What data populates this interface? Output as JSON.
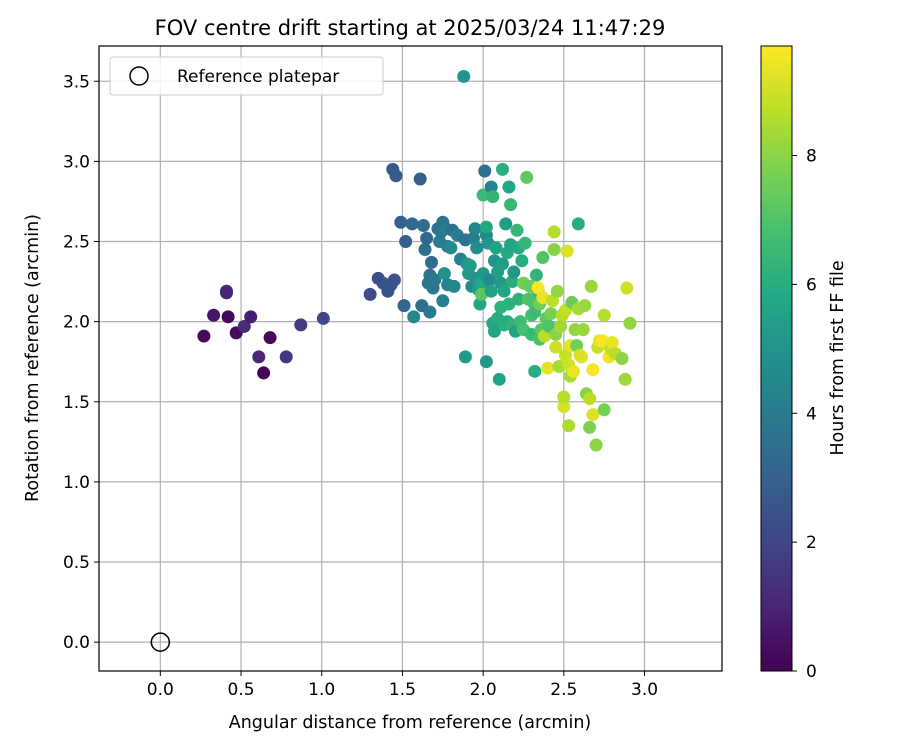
{
  "chart_data": {
    "type": "scatter",
    "title": "FOV centre drift starting at 2025/03/24 11:47:29",
    "xlabel": "Angular distance from reference (arcmin)",
    "ylabel": "Rotation from reference (arcmin)",
    "xlim": [
      -0.38,
      3.48
    ],
    "ylim": [
      -0.18,
      3.72
    ],
    "xticks": [
      0.0,
      0.5,
      1.0,
      1.5,
      2.0,
      2.5,
      3.0
    ],
    "xtick_labels": [
      "0.0",
      "0.5",
      "1.0",
      "1.5",
      "2.0",
      "2.5",
      "3.0"
    ],
    "yticks": [
      0.0,
      0.5,
      1.0,
      1.5,
      2.0,
      2.5,
      3.0,
      3.5
    ],
    "ytick_labels": [
      "0.0",
      "0.5",
      "1.0",
      "1.5",
      "2.0",
      "2.5",
      "3.0",
      "3.5"
    ],
    "grid": true,
    "legend": {
      "position": "top-left",
      "entries": [
        "Reference platepar"
      ]
    },
    "reference_point": {
      "name": "Reference platepar",
      "x": 0.0,
      "y": 0.0,
      "marker": "hollow-circle"
    },
    "colorbar": {
      "label": "Hours from first FF file",
      "min": 0,
      "max": 9.7,
      "ticks": [
        0,
        2,
        4,
        6,
        8
      ],
      "tick_labels": [
        "0",
        "2",
        "4",
        "6",
        "8"
      ],
      "colormap": "viridis"
    },
    "points": [
      [
        0.27,
        1.91,
        0.3
      ],
      [
        0.33,
        2.04,
        0.6
      ],
      [
        0.41,
        2.18,
        0.9
      ],
      [
        0.41,
        2.19,
        1.0
      ],
      [
        0.42,
        2.03,
        0.2
      ],
      [
        0.47,
        1.93,
        0.3
      ],
      [
        0.52,
        1.97,
        1.2
      ],
      [
        0.56,
        2.03,
        0.8
      ],
      [
        0.61,
        1.78,
        1.1
      ],
      [
        0.64,
        1.68,
        0.1
      ],
      [
        0.68,
        1.9,
        0.2
      ],
      [
        0.78,
        1.78,
        1.5
      ],
      [
        0.87,
        1.98,
        1.7
      ],
      [
        1.01,
        2.02,
        2.0
      ],
      [
        1.3,
        2.17,
        2.2
      ],
      [
        1.35,
        2.27,
        2.3
      ],
      [
        1.38,
        2.24,
        2.4
      ],
      [
        1.41,
        2.19,
        2.5
      ],
      [
        1.43,
        2.23,
        2.6
      ],
      [
        1.45,
        2.26,
        2.4
      ],
      [
        1.44,
        2.95,
        2.7
      ],
      [
        1.46,
        2.91,
        2.8
      ],
      [
        1.49,
        2.62,
        3.0
      ],
      [
        1.51,
        2.1,
        3.2
      ],
      [
        1.52,
        2.5,
        3.0
      ],
      [
        1.56,
        2.61,
        3.3
      ],
      [
        1.57,
        2.03,
        4.5
      ],
      [
        1.61,
        2.89,
        2.9
      ],
      [
        1.62,
        2.1,
        3.6
      ],
      [
        1.63,
        2.6,
        3.4
      ],
      [
        1.64,
        2.45,
        3.5
      ],
      [
        1.65,
        2.52,
        3.3
      ],
      [
        1.66,
        2.24,
        3.8
      ],
      [
        1.67,
        2.06,
        3.9
      ],
      [
        1.67,
        2.29,
        3.6
      ],
      [
        1.68,
        2.37,
        3.4
      ],
      [
        1.69,
        2.21,
        3.8
      ],
      [
        1.7,
        2.26,
        3.9
      ],
      [
        1.72,
        2.58,
        3.5
      ],
      [
        1.73,
        2.5,
        4.0
      ],
      [
        1.74,
        2.56,
        3.8
      ],
      [
        1.75,
        2.13,
        4.2
      ],
      [
        1.75,
        2.62,
        3.7
      ],
      [
        1.76,
        2.3,
        4.8
      ],
      [
        1.77,
        2.58,
        4.0
      ],
      [
        1.78,
        2.47,
        4.1
      ],
      [
        1.78,
        2.23,
        4.3
      ],
      [
        1.8,
        2.46,
        4.6
      ],
      [
        1.81,
        2.57,
        3.6
      ],
      [
        1.82,
        2.22,
        4.4
      ],
      [
        1.84,
        2.54,
        4.0
      ],
      [
        1.86,
        2.39,
        4.2
      ],
      [
        1.88,
        3.53,
        5.0
      ],
      [
        1.89,
        1.78,
        5.2
      ],
      [
        1.89,
        2.51,
        3.8
      ],
      [
        1.9,
        2.36,
        5.0
      ],
      [
        1.91,
        2.3,
        5.1
      ],
      [
        1.92,
        2.35,
        5.3
      ],
      [
        1.93,
        2.22,
        4.6
      ],
      [
        1.94,
        2.52,
        4.2
      ],
      [
        1.95,
        2.58,
        4.4
      ],
      [
        1.96,
        2.46,
        4.7
      ],
      [
        1.96,
        2.27,
        4.9
      ],
      [
        1.97,
        2.2,
        5.4
      ],
      [
        1.98,
        2.11,
        5.6
      ],
      [
        1.99,
        2.24,
        5.8
      ],
      [
        1.99,
        2.17,
        7.2
      ],
      [
        2.0,
        2.3,
        5.2
      ],
      [
        2.0,
        2.79,
        6.6
      ],
      [
        2.01,
        2.94,
        3.6
      ],
      [
        2.02,
        1.75,
        5.2
      ],
      [
        2.02,
        2.54,
        4.5
      ],
      [
        2.02,
        2.59,
        5.8
      ],
      [
        2.03,
        2.49,
        5.0
      ],
      [
        2.04,
        2.26,
        4.6
      ],
      [
        2.05,
        2.84,
        4.4
      ],
      [
        2.05,
        2.19,
        5.5
      ],
      [
        2.06,
        1.99,
        5.8
      ],
      [
        2.06,
        2.78,
        6.3
      ],
      [
        2.07,
        1.94,
        5.7
      ],
      [
        2.07,
        2.38,
        5.0
      ],
      [
        2.08,
        2.46,
        5.6
      ],
      [
        2.09,
        2.02,
        6.0
      ],
      [
        2.09,
        2.31,
        5.4
      ],
      [
        2.1,
        1.64,
        5.6
      ],
      [
        2.11,
        2.09,
        6.2
      ],
      [
        2.11,
        2.24,
        5.2
      ],
      [
        2.12,
        2.95,
        6.1
      ],
      [
        2.12,
        2.36,
        5.3
      ],
      [
        2.13,
        1.98,
        6.1
      ],
      [
        2.13,
        2.19,
        5.7
      ],
      [
        2.14,
        2.61,
        5.4
      ],
      [
        2.15,
        2.0,
        6.0
      ],
      [
        2.15,
        2.43,
        5.9
      ],
      [
        2.16,
        2.84,
        5.8
      ],
      [
        2.16,
        2.11,
        6.2
      ],
      [
        2.17,
        2.73,
        6.5
      ],
      [
        2.17,
        2.48,
        5.6
      ],
      [
        2.18,
        2.25,
        6.0
      ],
      [
        2.18,
        1.98,
        6.3
      ],
      [
        2.19,
        2.31,
        5.1
      ],
      [
        2.2,
        1.94,
        5.7
      ],
      [
        2.21,
        2.57,
        6.4
      ],
      [
        2.22,
        2.46,
        5.9
      ],
      [
        2.22,
        2.14,
        6.2
      ],
      [
        2.23,
        2.0,
        6.6
      ],
      [
        2.24,
        2.38,
        6.0
      ],
      [
        2.25,
        1.95,
        6.8
      ],
      [
        2.25,
        2.24,
        7.6
      ],
      [
        2.26,
        2.49,
        6.4
      ],
      [
        2.27,
        2.9,
        7.3
      ],
      [
        2.28,
        2.14,
        7.0
      ],
      [
        2.29,
        2.22,
        7.4
      ],
      [
        2.3,
        1.92,
        6.5
      ],
      [
        2.3,
        2.04,
        6.8
      ],
      [
        2.31,
        2.12,
        6.9
      ],
      [
        2.32,
        1.69,
        6.0
      ],
      [
        2.32,
        2.06,
        6.6
      ],
      [
        2.33,
        2.29,
        6.3
      ],
      [
        2.34,
        2.19,
        6.4
      ],
      [
        2.34,
        2.21,
        9.6
      ],
      [
        2.35,
        1.89,
        6.9
      ],
      [
        2.35,
        2.11,
        7.6
      ],
      [
        2.36,
        1.95,
        7.2
      ],
      [
        2.37,
        2.4,
        7.0
      ],
      [
        2.37,
        2.15,
        9.4
      ],
      [
        2.38,
        1.91,
        8.7
      ],
      [
        2.39,
        2.02,
        7.3
      ],
      [
        2.4,
        1.71,
        9.3
      ],
      [
        2.41,
        1.97,
        7.0
      ],
      [
        2.42,
        2.05,
        7.7
      ],
      [
        2.43,
        2.13,
        8.7
      ],
      [
        2.44,
        2.56,
        8.6
      ],
      [
        2.44,
        2.45,
        7.9
      ],
      [
        2.45,
        1.92,
        8.0
      ],
      [
        2.45,
        1.84,
        9.0
      ],
      [
        2.46,
        2.19,
        8.1
      ],
      [
        2.47,
        1.72,
        8.4
      ],
      [
        2.48,
        1.97,
        8.3
      ],
      [
        2.49,
        2.04,
        8.6
      ],
      [
        2.5,
        1.47,
        9.1
      ],
      [
        2.5,
        1.53,
        8.6
      ],
      [
        2.51,
        1.79,
        8.9
      ],
      [
        2.51,
        2.07,
        8.8
      ],
      [
        2.52,
        2.44,
        9.2
      ],
      [
        2.53,
        1.35,
        8.5
      ],
      [
        2.53,
        1.73,
        9.0
      ],
      [
        2.54,
        1.85,
        9.3
      ],
      [
        2.54,
        1.66,
        8.4
      ],
      [
        2.55,
        2.12,
        7.5
      ],
      [
        2.56,
        1.69,
        9.4
      ],
      [
        2.57,
        1.95,
        8.1
      ],
      [
        2.58,
        1.85,
        7.6
      ],
      [
        2.59,
        2.08,
        8.4
      ],
      [
        2.59,
        2.61,
        6.0
      ],
      [
        2.6,
        1.79,
        9.0
      ],
      [
        2.61,
        1.78,
        9.2
      ],
      [
        2.62,
        1.95,
        8.2
      ],
      [
        2.63,
        2.1,
        8.2
      ],
      [
        2.64,
        1.55,
        7.9
      ],
      [
        2.66,
        1.52,
        8.7
      ],
      [
        2.66,
        1.34,
        7.8
      ],
      [
        2.67,
        2.22,
        8.2
      ],
      [
        2.68,
        1.42,
        9.2
      ],
      [
        2.68,
        1.7,
        9.6
      ],
      [
        2.7,
        1.23,
        8.0
      ],
      [
        2.71,
        1.84,
        8.9
      ],
      [
        2.72,
        1.88,
        9.3
      ],
      [
        2.74,
        1.88,
        9.6
      ],
      [
        2.75,
        2.04,
        8.6
      ],
      [
        2.75,
        1.45,
        7.7
      ],
      [
        2.78,
        1.78,
        9.5
      ],
      [
        2.79,
        1.83,
        8.8
      ],
      [
        2.8,
        1.87,
        9.4
      ],
      [
        2.82,
        1.8,
        8.7
      ],
      [
        2.86,
        1.77,
        8.0
      ],
      [
        2.88,
        1.64,
        8.3
      ],
      [
        2.89,
        2.21,
        9.0
      ],
      [
        2.91,
        1.99,
        8.1
      ]
    ]
  }
}
